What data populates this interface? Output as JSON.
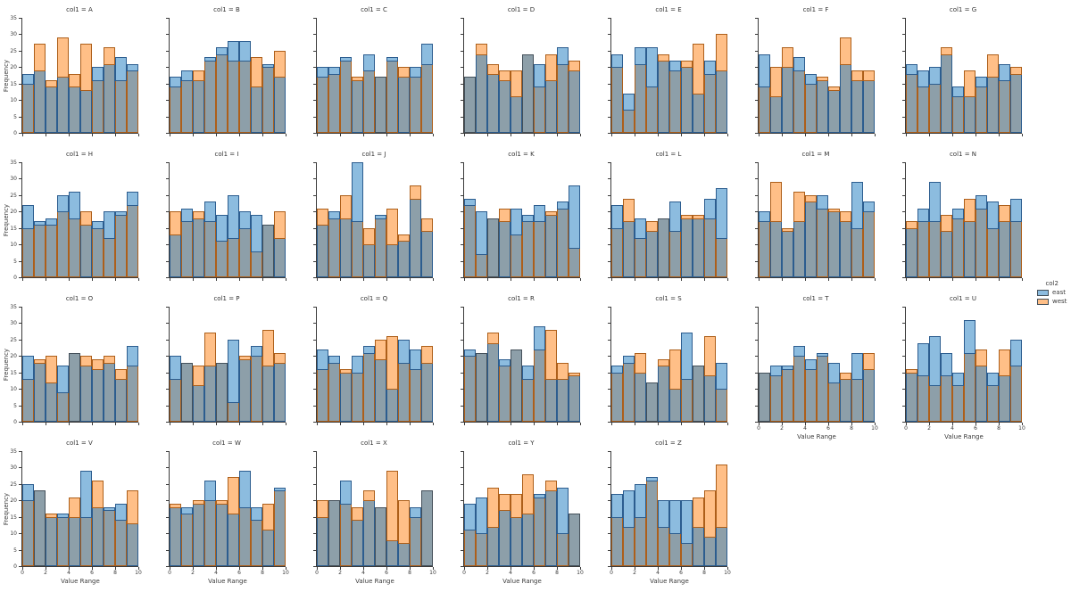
{
  "figure": {
    "background": "#ffffff"
  },
  "legend": {
    "title": "col2",
    "entries": [
      {
        "label": "east",
        "color": "#8cbcdf",
        "edge": "#2c5d8f"
      },
      {
        "label": "west",
        "color": "#ffbf87",
        "edge": "#ad5f1a"
      }
    ]
  },
  "axes": {
    "x_label": "Value Range",
    "y_label": "Frequency",
    "y_ticks": [
      0,
      5,
      10,
      15,
      20,
      25,
      30,
      35
    ],
    "x_ticks": [
      0,
      2,
      4,
      6,
      8,
      10
    ],
    "ylim": [
      0,
      35
    ],
    "xlim": [
      0,
      10
    ]
  },
  "chart_data": {
    "type": "histogram-facet-grid",
    "facet_var": "col1",
    "hue_var": "col2",
    "series_names": [
      "east",
      "west"
    ],
    "bin_edges": [
      0,
      1,
      2,
      3,
      4,
      5,
      6,
      7,
      8,
      9,
      10
    ],
    "xlabel": "Value Range",
    "ylabel": "Frequency",
    "ylim": [
      0,
      35
    ],
    "xlim": [
      0,
      10
    ],
    "grid": false,
    "legend_position": "right",
    "colors": {
      "east": "#8cbcdf",
      "west": "#ffbf87",
      "overlap": "#8d9fa9",
      "east_edge": "#2c5d8f",
      "west_edge": "#ad5f1a",
      "overlap_edge": "#44505a"
    },
    "facets": [
      {
        "title": "col1 = A",
        "east": [
          18,
          19,
          14,
          17,
          14,
          13,
          20,
          21,
          23,
          21
        ],
        "west": [
          15,
          27,
          16,
          29,
          18,
          27,
          16,
          26,
          16,
          19
        ]
      },
      {
        "title": "col1 = B",
        "east": [
          17,
          19,
          16,
          23,
          26,
          28,
          28,
          14,
          21,
          17
        ],
        "west": [
          14,
          16,
          19,
          22,
          24,
          22,
          22,
          23,
          20,
          25
        ]
      },
      {
        "title": "col1 = C",
        "east": [
          20,
          20,
          23,
          16,
          24,
          17,
          23,
          17,
          20,
          27
        ],
        "west": [
          17,
          18,
          22,
          17,
          19,
          17,
          22,
          20,
          17,
          21
        ]
      },
      {
        "title": "col1 = D",
        "east": [
          17,
          24,
          18,
          16,
          11,
          24,
          21,
          16,
          26,
          19
        ],
        "west": [
          17,
          27,
          21,
          19,
          19,
          24,
          14,
          24,
          21,
          22
        ]
      },
      {
        "title": "col1 = E",
        "east": [
          24,
          12,
          26,
          26,
          22,
          22,
          20,
          12,
          22,
          19
        ],
        "west": [
          20,
          7,
          21,
          14,
          24,
          19,
          22,
          27,
          18,
          30
        ]
      },
      {
        "title": "col1 = F",
        "east": [
          24,
          11,
          20,
          23,
          18,
          16,
          13,
          21,
          16,
          16
        ],
        "west": [
          14,
          20,
          26,
          19,
          15,
          17,
          14,
          29,
          19,
          19
        ]
      },
      {
        "title": "col1 = G",
        "east": [
          21,
          19,
          20,
          24,
          14,
          11,
          17,
          17,
          21,
          18
        ],
        "west": [
          18,
          14,
          15,
          26,
          11,
          19,
          14,
          24,
          16,
          20
        ]
      },
      {
        "title": "col1 = H",
        "east": [
          22,
          17,
          18,
          25,
          26,
          16,
          17,
          20,
          20,
          26
        ],
        "west": [
          15,
          16,
          16,
          20,
          18,
          20,
          15,
          12,
          19,
          22
        ]
      },
      {
        "title": "col1 = I",
        "east": [
          13,
          21,
          18,
          23,
          19,
          25,
          20,
          19,
          16,
          12
        ],
        "west": [
          20,
          17,
          20,
          17,
          11,
          12,
          15,
          8,
          16,
          20
        ]
      },
      {
        "title": "col1 = J",
        "east": [
          16,
          20,
          18,
          35,
          10,
          19,
          10,
          11,
          24,
          14
        ],
        "west": [
          21,
          18,
          25,
          17,
          15,
          18,
          21,
          13,
          28,
          18
        ]
      },
      {
        "title": "col1 = K",
        "east": [
          24,
          20,
          18,
          17,
          21,
          19,
          22,
          19,
          23,
          28
        ],
        "west": [
          22,
          7,
          18,
          21,
          13,
          17,
          17,
          20,
          21,
          9
        ]
      },
      {
        "title": "col1 = L",
        "east": [
          22,
          17,
          18,
          14,
          18,
          23,
          18,
          18,
          24,
          27
        ],
        "west": [
          15,
          24,
          12,
          17,
          18,
          14,
          19,
          19,
          18,
          12
        ]
      },
      {
        "title": "col1 = M",
        "east": [
          20,
          17,
          14,
          17,
          23,
          25,
          20,
          17,
          29,
          23
        ],
        "west": [
          17,
          29,
          15,
          26,
          25,
          21,
          21,
          20,
          15,
          20
        ]
      },
      {
        "title": "col1 = N",
        "east": [
          15,
          21,
          29,
          14,
          21,
          17,
          25,
          23,
          17,
          24
        ],
        "west": [
          17,
          17,
          17,
          19,
          18,
          24,
          21,
          15,
          22,
          17
        ]
      },
      {
        "title": "col1 = O",
        "east": [
          20,
          18,
          12,
          17,
          21,
          17,
          16,
          18,
          13,
          23
        ],
        "west": [
          13,
          19,
          20,
          9,
          21,
          20,
          19,
          20,
          16,
          17
        ]
      },
      {
        "title": "col1 = P",
        "east": [
          20,
          18,
          11,
          17,
          18,
          25,
          19,
          23,
          17,
          18
        ],
        "west": [
          13,
          18,
          17,
          27,
          18,
          6,
          20,
          20,
          28,
          21
        ]
      },
      {
        "title": "col1 = Q",
        "east": [
          22,
          20,
          15,
          20,
          23,
          19,
          10,
          25,
          22,
          18
        ],
        "west": [
          16,
          18,
          16,
          15,
          21,
          25,
          26,
          18,
          16,
          23
        ]
      },
      {
        "title": "col1 = R",
        "east": [
          22,
          21,
          24,
          19,
          22,
          17,
          29,
          13,
          13,
          14
        ],
        "west": [
          20,
          21,
          27,
          17,
          22,
          13,
          22,
          28,
          18,
          15
        ]
      },
      {
        "title": "col1 = S",
        "east": [
          17,
          20,
          15,
          12,
          17,
          10,
          27,
          17,
          14,
          18
        ],
        "west": [
          15,
          18,
          21,
          12,
          19,
          22,
          13,
          17,
          26,
          10
        ]
      },
      {
        "title": "col1 = T",
        "east": [
          15,
          17,
          17,
          23,
          19,
          21,
          18,
          13,
          21,
          16
        ],
        "west": [
          15,
          14,
          16,
          20,
          16,
          20,
          12,
          15,
          13,
          21
        ]
      },
      {
        "title": "col1 = U",
        "east": [
          15,
          24,
          26,
          21,
          15,
          31,
          17,
          15,
          14,
          25
        ],
        "west": [
          16,
          14,
          11,
          14,
          11,
          21,
          22,
          11,
          22,
          17
        ]
      },
      {
        "title": "col1 = V",
        "east": [
          25,
          23,
          15,
          16,
          15,
          29,
          18,
          18,
          19,
          13
        ],
        "west": [
          20,
          23,
          16,
          15,
          21,
          15,
          26,
          17,
          14,
          23
        ]
      },
      {
        "title": "col1 = W",
        "east": [
          18,
          18,
          19,
          26,
          19,
          16,
          29,
          18,
          11,
          24
        ],
        "west": [
          19,
          16,
          20,
          20,
          20,
          27,
          18,
          14,
          19,
          23
        ]
      },
      {
        "title": "col1 = X",
        "east": [
          15,
          20,
          26,
          14,
          20,
          18,
          8,
          7,
          18,
          23
        ],
        "west": [
          20,
          20,
          19,
          18,
          23,
          18,
          29,
          20,
          15,
          23
        ]
      },
      {
        "title": "col1 = Y",
        "east": [
          19,
          21,
          12,
          17,
          15,
          16,
          22,
          23,
          24,
          16
        ],
        "west": [
          11,
          10,
          24,
          22,
          22,
          28,
          21,
          26,
          10,
          16
        ]
      },
      {
        "title": "col1 = Z",
        "east": [
          22,
          23,
          25,
          27,
          20,
          20,
          20,
          12,
          9,
          12
        ],
        "west": [
          15,
          12,
          15,
          26,
          12,
          10,
          7,
          21,
          23,
          31
        ]
      }
    ]
  }
}
